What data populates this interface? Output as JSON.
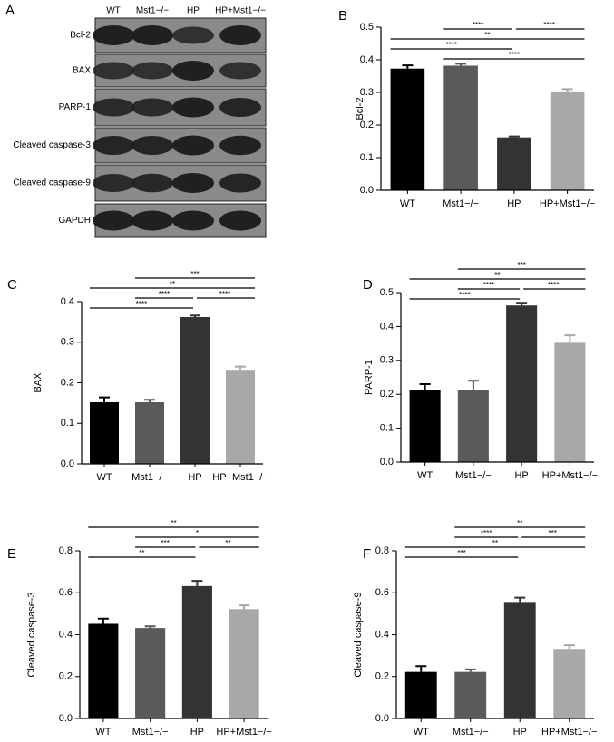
{
  "blot": {
    "panel": "A",
    "columns": [
      "WT",
      "Mst1−/−",
      "HP",
      "HP+Mst1−/−"
    ],
    "rows": [
      "Bcl-2",
      "BAX",
      "PARP-1",
      "Cleaved caspase-3",
      "Cleaved caspase-9",
      "GAPDH"
    ]
  },
  "chart_data": [
    {
      "type": "bar",
      "panel": "B",
      "ylabel": "Bcl-2",
      "categories": [
        "WT",
        "Mst1−/−",
        "HP",
        "HP+Mst1−/−"
      ],
      "values": [
        0.373,
        0.382,
        0.162,
        0.303
      ],
      "errors": [
        0.01,
        0.006,
        0.003,
        0.007
      ],
      "colors": [
        "#000000",
        "#5a5a5a",
        "#333333",
        "#a8a8a8"
      ],
      "ylim": [
        0,
        0.5
      ],
      "yticks": [
        {
          "value": 0,
          "label": "0.0"
        },
        0.1,
        0.2,
        0.3,
        0.4,
        0.5
      ],
      "brackets": [
        [
          {
            "from": 1,
            "to": 2,
            "label": "****"
          },
          {
            "from": 2,
            "to": 3,
            "label": "****"
          }
        ],
        [
          {
            "from": 0,
            "to": 3,
            "label": "**"
          }
        ],
        [
          {
            "from": 0,
            "to": 2,
            "label": "****"
          }
        ],
        [
          {
            "from": 1,
            "to": 3,
            "label": "****"
          }
        ]
      ]
    },
    {
      "type": "bar",
      "panel": "C",
      "ylabel": "BAX",
      "categories": [
        "WT",
        "Mst1−/−",
        "HP",
        "HP+Mst1−/−"
      ],
      "values": [
        0.152,
        0.152,
        0.362,
        0.232
      ],
      "errors": [
        0.012,
        0.006,
        0.004,
        0.008
      ],
      "colors": [
        "#000000",
        "#5a5a5a",
        "#333333",
        "#a8a8a8"
      ],
      "ylim": [
        0,
        0.4
      ],
      "yticks": [
        {
          "value": 0,
          "label": "0.0"
        },
        0.1,
        0.2,
        0.3,
        0.4
      ],
      "brackets": [
        [
          {
            "from": 1,
            "to": 3,
            "label": "***"
          }
        ],
        [
          {
            "from": 0,
            "to": 3,
            "label": "**"
          }
        ],
        [
          {
            "from": 1,
            "to": 2,
            "label": "****"
          },
          {
            "from": 2,
            "to": 3,
            "label": "****"
          }
        ],
        [
          {
            "from": 0,
            "to": 2,
            "label": "****"
          }
        ]
      ]
    },
    {
      "type": "bar",
      "panel": "D",
      "ylabel": "PARP-1",
      "categories": [
        "WT",
        "Mst1−/−",
        "HP",
        "HP+Mst1−/−"
      ],
      "values": [
        0.212,
        0.212,
        0.462,
        0.352
      ],
      "errors": [
        0.018,
        0.028,
        0.008,
        0.022
      ],
      "colors": [
        "#000000",
        "#5a5a5a",
        "#333333",
        "#a8a8a8"
      ],
      "ylim": [
        0,
        0.5
      ],
      "yticks": [
        {
          "value": 0,
          "label": "0.0"
        },
        0.1,
        0.2,
        0.3,
        0.4,
        0.5
      ],
      "brackets": [
        [
          {
            "from": 1,
            "to": 3,
            "label": "***"
          }
        ],
        [
          {
            "from": 0,
            "to": 3,
            "label": "**"
          }
        ],
        [
          {
            "from": 1,
            "to": 2,
            "label": "****"
          },
          {
            "from": 2,
            "to": 3,
            "label": "****"
          }
        ],
        [
          {
            "from": 0,
            "to": 2,
            "label": "****"
          }
        ]
      ]
    },
    {
      "type": "bar",
      "panel": "E",
      "ylabel": "Cleaved caspase-3",
      "categories": [
        "WT",
        "Mst1−/−",
        "HP",
        "HP+Mst1−/−"
      ],
      "values": [
        0.452,
        0.432,
        0.632,
        0.522
      ],
      "errors": [
        0.025,
        0.008,
        0.025,
        0.018
      ],
      "colors": [
        "#000000",
        "#5a5a5a",
        "#333333",
        "#a8a8a8"
      ],
      "ylim": [
        0,
        0.8
      ],
      "yticks": [
        {
          "value": 0,
          "label": "0.0"
        },
        0.2,
        0.4,
        0.6,
        0.8
      ],
      "brackets": [
        [
          {
            "from": 0,
            "to": 3,
            "label": "**"
          }
        ],
        [
          {
            "from": 1,
            "to": 3,
            "label": "*"
          }
        ],
        [
          {
            "from": 1,
            "to": 2,
            "label": "***"
          },
          {
            "from": 2,
            "to": 3,
            "label": "**"
          }
        ],
        [
          {
            "from": 0,
            "to": 2,
            "label": "**"
          }
        ]
      ]
    },
    {
      "type": "bar",
      "panel": "F",
      "ylabel": "Cleaved caspase-9",
      "categories": [
        "WT",
        "Mst1−/−",
        "HP",
        "HP+Mst1−/−"
      ],
      "values": [
        0.222,
        0.222,
        0.552,
        0.332
      ],
      "errors": [
        0.028,
        0.012,
        0.025,
        0.018
      ],
      "colors": [
        "#000000",
        "#5a5a5a",
        "#333333",
        "#a8a8a8"
      ],
      "ylim": [
        0,
        0.8
      ],
      "yticks": [
        {
          "value": 0,
          "label": "0.0"
        },
        0.2,
        0.4,
        0.6,
        0.8
      ],
      "brackets": [
        [
          {
            "from": 1,
            "to": 3,
            "label": "**"
          }
        ],
        [
          {
            "from": 1,
            "to": 2,
            "label": "****"
          },
          {
            "from": 2,
            "to": 3,
            "label": "***"
          }
        ],
        [
          {
            "from": 0,
            "to": 3,
            "label": "**"
          }
        ],
        [
          {
            "from": 0,
            "to": 2,
            "label": "***"
          }
        ]
      ]
    }
  ]
}
